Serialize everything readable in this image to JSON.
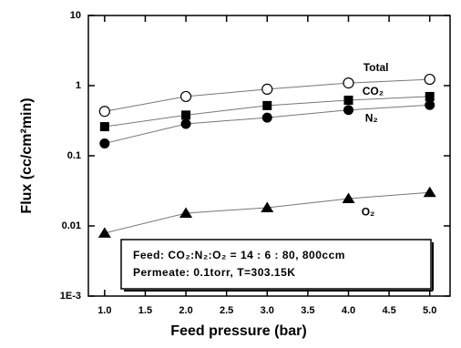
{
  "chart_data": {
    "type": "line",
    "x_label": "Feed pressure (bar)",
    "y_label": "Flux (cc/cm²min)",
    "y_log": true,
    "grid": false,
    "line_color": "#777777",
    "xlim": [
      0.8,
      5.25
    ],
    "xticks": [
      {
        "value": 1,
        "label": "1.0"
      },
      1.5,
      {
        "value": 2,
        "label": "2.0"
      },
      2.5,
      {
        "value": 3,
        "label": "3.0"
      },
      3.5,
      {
        "value": 4,
        "label": "4.0"
      },
      4.5,
      {
        "value": 5,
        "label": "5.0"
      }
    ],
    "ylim": [
      0.001,
      10
    ],
    "yticks": [
      {
        "value": 0.001,
        "label": "1E-3"
      },
      0.01,
      0.1,
      1,
      10
    ],
    "x": [
      1,
      2,
      3,
      4,
      5
    ],
    "series": [
      {
        "name": "Total",
        "color": "#000000",
        "marker": "circle-open",
        "values": [
          0.43,
          0.7,
          0.89,
          1.09,
          1.23
        ]
      },
      {
        "name": "CO₂",
        "color": "#000000",
        "marker": "square",
        "values": [
          0.26,
          0.38,
          0.52,
          0.62,
          0.7
        ]
      },
      {
        "name": "N₂",
        "color": "#000000",
        "marker": "circle",
        "values": [
          0.15,
          0.285,
          0.35,
          0.45,
          0.53
        ]
      },
      {
        "name": "O₂",
        "color": "#000000",
        "marker": "triangle",
        "values": [
          0.0079,
          0.0152,
          0.0182,
          0.0245,
          0.03
        ]
      }
    ],
    "annotations": [
      "Feed: CO₂:N₂:O₂ = 14 : 6 : 80, 800ccm",
      "Permeate: 0.1torr, T=303.15K"
    ]
  }
}
